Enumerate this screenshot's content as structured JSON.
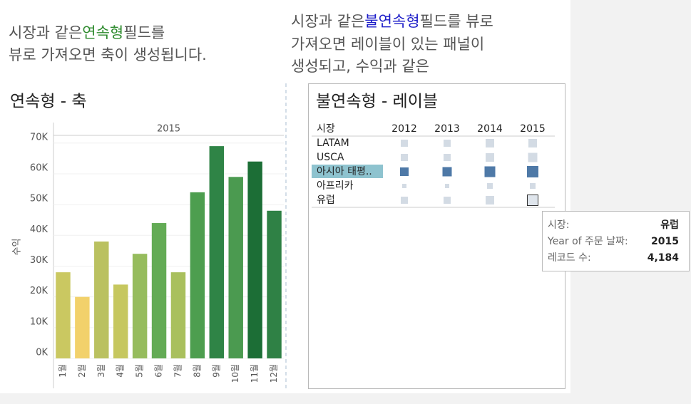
{
  "captions": {
    "left": {
      "before": "시장과 같은",
      "highlight": "연속형",
      "after": "필드를",
      "line2": "뷰로 가져오면 축이 생성됩니다."
    },
    "right": {
      "before": "시장과 같은",
      "highlight": "불연속형",
      "after": "필드를 뷰로",
      "line2": "가져오면 레이블이 있는 패널이",
      "line3": "생성되고, 수익과 같은"
    }
  },
  "chart_data": {
    "type": "bar",
    "title": "연속형 - 축",
    "panel_header": "2015",
    "y_label": "수익",
    "categories": [
      "1월",
      "2월",
      "3월",
      "4월",
      "5월",
      "6월",
      "7월",
      "8월",
      "9월",
      "10월",
      "11월",
      "12월"
    ],
    "values": [
      28000,
      20000,
      38000,
      24000,
      34000,
      44000,
      28000,
      54000,
      69000,
      59000,
      64000,
      48000
    ],
    "colors": [
      "#cac861",
      "#f2d16b",
      "#bac160",
      "#c6c75f",
      "#96bc5d",
      "#63ab55",
      "#a9c05d",
      "#4d9e4f",
      "#2f8446",
      "#4b9a50",
      "#1c6e36",
      "#2f8145"
    ],
    "ylim": [
      0,
      72500
    ],
    "yticks": [
      {
        "value": 0,
        "label": "0K"
      },
      {
        "value": 10000,
        "label": "10K"
      },
      {
        "value": 20000,
        "label": "20K"
      },
      {
        "value": 30000,
        "label": "30K"
      },
      {
        "value": 40000,
        "label": "40K"
      },
      {
        "value": 50000,
        "label": "50K"
      },
      {
        "value": 60000,
        "label": "60K"
      },
      {
        "value": 70000,
        "label": "70K"
      }
    ],
    "grid": true
  },
  "table": {
    "title": "불연속형 - 레이블",
    "row_header": "시장",
    "columns": [
      "2012",
      "2013",
      "2014",
      "2015"
    ],
    "rows": [
      "LATAM",
      "USCA",
      "아시아 태평..",
      "아프리카",
      "유럽"
    ],
    "record_counts": [
      [
        1860,
        1860,
        2680,
        2680
      ],
      [
        1860,
        1860,
        2680,
        3140
      ],
      [
        2680,
        3140,
        4200,
        4760
      ],
      [
        670,
        670,
        1190,
        1190
      ],
      [
        1860,
        1860,
        2680,
        4184
      ]
    ]
  },
  "tooltip": {
    "rows": [
      {
        "label": "시장:",
        "value": "유럽"
      },
      {
        "label": "Year of 주문 날짜:",
        "value": "2015"
      },
      {
        "label": "레코드 수:",
        "value": "4,184"
      }
    ]
  }
}
